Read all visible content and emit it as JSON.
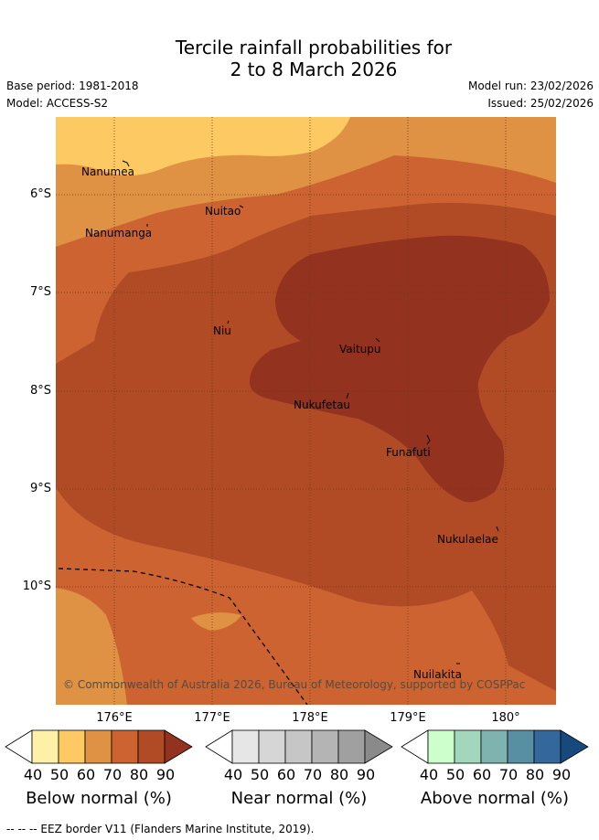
{
  "title": {
    "line1": "Tercile rainfall probabilities for",
    "line2": "2 to 8 March 2026"
  },
  "meta": {
    "base_period": "Base period: 1981-2018",
    "model": "Model: ACCESS-S2",
    "model_run": "Model run: 23/02/2026",
    "issued": "Issued: 25/02/2026"
  },
  "map": {
    "lat_labels": [
      "6°S",
      "7°S",
      "8°S",
      "9°S",
      "10°S"
    ],
    "lon_labels": [
      "176°E",
      "177°E",
      "178°E",
      "179°E",
      "180°"
    ],
    "places": [
      {
        "name": "Nanumea"
      },
      {
        "name": "Nuitao"
      },
      {
        "name": "Nanumanga"
      },
      {
        "name": "Niu"
      },
      {
        "name": "Vaitupu"
      },
      {
        "name": "Nukufetau"
      },
      {
        "name": "Funafuti"
      },
      {
        "name": "Nukulaelae"
      },
      {
        "name": "Nuilakita"
      }
    ],
    "credit": "© Commonwealth of Australia 2026, Bureau of Meteorology, supported by COSPPac"
  },
  "colorbars": [
    {
      "label": "Below normal (%)",
      "ticks": [
        "40",
        "50",
        "60",
        "70",
        "80",
        "90"
      ],
      "colors": [
        "#ffffff",
        "#fff0a8",
        "#fdc963",
        "#e09244",
        "#cc6331",
        "#b04b25",
        "#943220"
      ]
    },
    {
      "label": "Near normal (%)",
      "ticks": [
        "40",
        "50",
        "60",
        "70",
        "80",
        "90"
      ],
      "colors": [
        "#ffffff",
        "#e6e6e6",
        "#d6d6d6",
        "#c6c6c6",
        "#b4b4b4",
        "#a0a0a0",
        "#8a8a8a"
      ]
    },
    {
      "label": "Above normal (%)",
      "ticks": [
        "40",
        "50",
        "60",
        "70",
        "80",
        "90"
      ],
      "colors": [
        "#ffffff",
        "#ccffcc",
        "#a2d7bd",
        "#7fb3b0",
        "#588fa2",
        "#34689d",
        "#17497d"
      ]
    }
  ],
  "footer": "-- -- -- EEZ border V11 (Flanders Marine Institute, 2019)."
}
